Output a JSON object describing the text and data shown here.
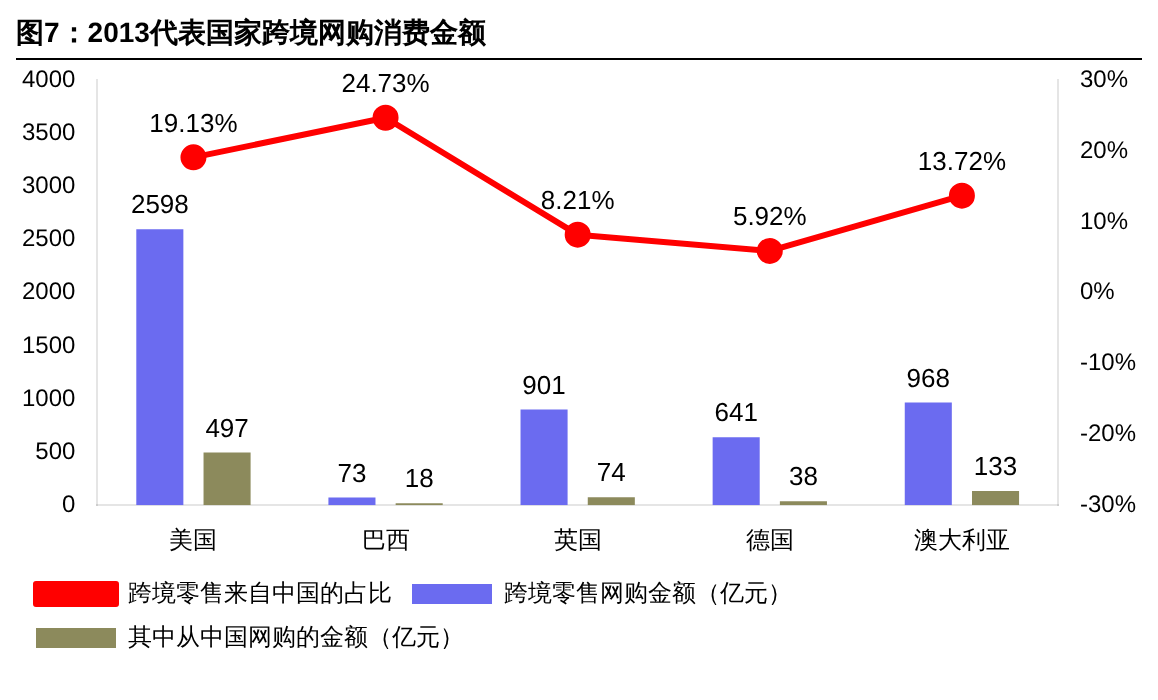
{
  "chart_data": {
    "type": "bar",
    "title": "图7：2013代表国家跨境网购消费金额",
    "categories": [
      "美国",
      "巴西",
      "英国",
      "德国",
      "澳大利亚"
    ],
    "series": [
      {
        "name": "跨境零售网购金额（亿元）",
        "color": "#6b6bf0",
        "values": [
          2598,
          73,
          901,
          641,
          968
        ],
        "value_labels": [
          "2598",
          "73",
          "901",
          "641",
          "968"
        ]
      },
      {
        "name": "其中从中国网购的金额（亿元）",
        "color": "#8c8a5c",
        "values": [
          497,
          18,
          74,
          38,
          133
        ],
        "value_labels": [
          "497",
          "18",
          "74",
          "38",
          "133"
        ]
      },
      {
        "name": "跨境零售来自中国的占比",
        "type": "line",
        "axis": "y2",
        "color": "#ff0000",
        "values": [
          19.13,
          24.73,
          8.21,
          5.92,
          13.72
        ],
        "value_labels": [
          "19.13%",
          "24.73%",
          "8.21%",
          "5.92%",
          "13.72%"
        ]
      }
    ],
    "ylim": [
      0,
      4000
    ],
    "yticks": [
      0,
      500,
      1000,
      1500,
      2000,
      2500,
      3000,
      3500,
      4000
    ],
    "y2lim": [
      -30,
      30
    ],
    "y2ticks": [
      {
        "value": -30,
        "label": "-30%"
      },
      {
        "value": -20,
        "label": "-20%"
      },
      {
        "value": -10,
        "label": "-10%"
      },
      {
        "value": 0,
        "label": "0%"
      },
      {
        "value": 10,
        "label": "10%"
      },
      {
        "value": 20,
        "label": "20%"
      },
      {
        "value": 30,
        "label": "30%"
      }
    ],
    "grid": false,
    "legend": "bottom",
    "marker": "circle",
    "line_style": "solid"
  }
}
